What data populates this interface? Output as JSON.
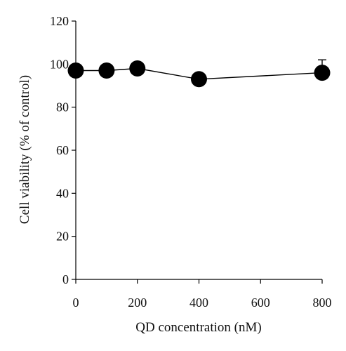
{
  "chart_data": {
    "type": "line",
    "xlabel": "QD concentration (nM)",
    "ylabel": "Cell viability (% of control)",
    "xlim": [
      0,
      800
    ],
    "ylim": [
      0,
      120
    ],
    "x_ticks": [
      0,
      200,
      400,
      600,
      800
    ],
    "y_ticks": [
      0,
      20,
      40,
      60,
      80,
      100,
      120
    ],
    "grid": false,
    "legend": "none",
    "series": [
      {
        "x": [
          0,
          100,
          200,
          400,
          800
        ],
        "y": [
          97,
          97,
          98,
          93,
          96
        ],
        "error_upper": [
          0,
          0,
          0,
          0,
          6
        ],
        "color": "#000000",
        "marker": "filled-circle"
      }
    ]
  }
}
